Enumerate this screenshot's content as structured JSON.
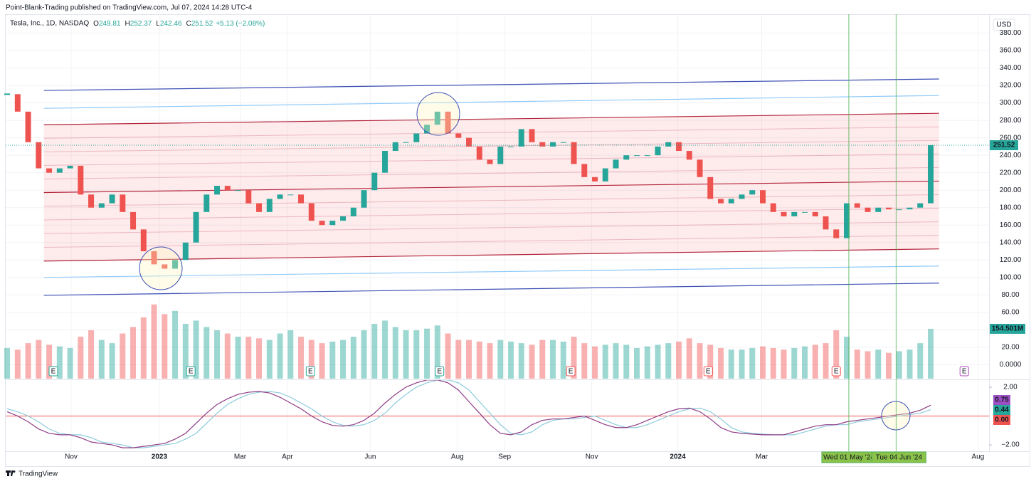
{
  "header": {
    "publisher": "Point-Blank-Trading published on TradingView.com, Jul 07, 2024 14:28 UTC-4",
    "symbol": "Tesla, Inc., 1D, NASDAQ",
    "ohlc": [
      {
        "label": "O",
        "value": 249.81
      },
      {
        "label": "H",
        "value": 252.37
      },
      {
        "label": "L",
        "value": 242.46
      },
      {
        "label": "C",
        "value": 251.52
      }
    ],
    "change": "+5.13 (+2.08%)",
    "currency": "USD",
    "footer": "TradingView"
  },
  "chart_data": {
    "type": "candlestick",
    "up_color": "#26a69a",
    "down_color": "#ef5350",
    "grid": true,
    "values": [
      310,
      290,
      255,
      225,
      220,
      225,
      228,
      195,
      180,
      185,
      195,
      175,
      155,
      130,
      115,
      110,
      120,
      140,
      175,
      195,
      205,
      200,
      200,
      185,
      175,
      190,
      195,
      195,
      185,
      165,
      160,
      165,
      170,
      180,
      200,
      220,
      245,
      255,
      255,
      265,
      275,
      290,
      265,
      260,
      250,
      235,
      230,
      250,
      250,
      270,
      255,
      250,
      255,
      255,
      230,
      215,
      210,
      225,
      235,
      240,
      240,
      240,
      250,
      255,
      245,
      235,
      215,
      190,
      185,
      190,
      195,
      200,
      185,
      175,
      170,
      175,
      175,
      170,
      155,
      145,
      185,
      180,
      175,
      180,
      178,
      178,
      180,
      185,
      251.52
    ],
    "xlim": [
      -0.14,
      93.56
    ],
    "xticks": [
      {
        "value": 6.1,
        "label": "Nov"
      },
      {
        "value": 14.5,
        "label": "2023"
      },
      {
        "value": 22.2,
        "label": "Mar"
      },
      {
        "value": 26.7,
        "label": "Apr"
      },
      {
        "value": 34.6,
        "label": "Jun"
      },
      {
        "value": 42.9,
        "label": "Aug"
      },
      {
        "value": 47.4,
        "label": "Sep"
      },
      {
        "value": 55.7,
        "label": "Nov"
      },
      {
        "value": 63.9,
        "label": "2024"
      },
      {
        "value": 71.9,
        "label": "Mar"
      },
      {
        "value": 92.5,
        "label": "Aug"
      }
    ],
    "ylim": [
      -16,
      400
    ],
    "yticks": [
      {
        "value": 0,
        "label": "0.0000"
      },
      {
        "value": 20,
        "label": "20.00"
      },
      {
        "value": 40,
        "label": "40.00"
      },
      {
        "value": 60,
        "label": "60.00"
      },
      {
        "value": 80,
        "label": "80.00"
      },
      {
        "value": 100,
        "label": "100.00"
      },
      {
        "value": 120,
        "label": "120.00"
      },
      {
        "value": 140,
        "label": "140.00"
      },
      {
        "value": 160,
        "label": "160.00"
      },
      {
        "value": 180,
        "label": "180.00"
      },
      {
        "value": 200,
        "label": "200.00"
      },
      {
        "value": 220,
        "label": "220.00"
      },
      {
        "value": 240,
        "label": "240.00"
      },
      {
        "value": 260,
        "label": "260.00"
      },
      {
        "value": 280,
        "label": "280.00"
      },
      {
        "value": 300,
        "label": "300.00"
      },
      {
        "value": 320,
        "label": "320.00"
      },
      {
        "value": 340,
        "label": "340.00"
      },
      {
        "value": 360,
        "label": "360.00"
      },
      {
        "value": 380,
        "label": "380.00"
      }
    ],
    "volume": {
      "values": [
        95,
        90,
        110,
        120,
        105,
        100,
        95,
        130,
        150,
        120,
        110,
        140,
        160,
        190,
        230,
        200,
        210,
        170,
        180,
        160,
        150,
        140,
        130,
        130,
        125,
        120,
        140,
        150,
        130,
        120,
        110,
        115,
        120,
        130,
        150,
        170,
        180,
        160,
        150,
        150,
        155,
        165,
        140,
        120,
        120,
        115,
        110,
        120,
        115,
        110,
        105,
        120,
        120,
        115,
        130,
        110,
        100,
        105,
        110,
        105,
        95,
        100,
        105,
        110,
        115,
        125,
        110,
        105,
        95,
        90,
        90,
        95,
        100,
        95,
        90,
        95,
        100,
        105,
        110,
        150,
        130,
        90,
        85,
        90,
        80,
        85,
        90,
        110,
        154.501
      ],
      "ylim": [
        0,
        1125
      ],
      "last_label": "154.501M"
    },
    "channel": {
      "x": [
        3.5,
        88.8
      ],
      "fill": "rgba(242,54,69,0.1)",
      "lines": [
        {
          "from": 314.3,
          "to": 327.4,
          "color": "#3f51b5"
        },
        {
          "from": 293.8,
          "to": 308.5,
          "color": "#90caf9"
        },
        {
          "from": 275.0,
          "to": 288.1,
          "color": "#b2243a"
        },
        {
          "from": 197.3,
          "to": 210.4,
          "color": "#b2243a"
        },
        {
          "from": 118.8,
          "to": 132.7,
          "color": "#b2243a"
        },
        {
          "from": 100.0,
          "to": 113.1,
          "color": "#90caf9"
        },
        {
          "from": 79.5,
          "to": 93.5,
          "color": "#3f51b5"
        }
      ]
    },
    "earnings": {
      "label": "E",
      "markers": [
        {
          "x": 4.4,
          "color": "#26a69a"
        },
        {
          "x": 17.5,
          "color": "#26a69a"
        },
        {
          "x": 28.9,
          "color": "#26a69a"
        },
        {
          "x": 41.2,
          "color": "#26a69a"
        },
        {
          "x": 53.7,
          "color": "#ef5350"
        },
        {
          "x": 66.8,
          "color": "#ef5350"
        },
        {
          "x": 79.0,
          "color": "#ef5350"
        },
        {
          "x": 91.2,
          "color": "#ab47bc"
        }
      ]
    },
    "crosshairs": [
      {
        "x": 80.2,
        "label": "Wed 01 May '24"
      },
      {
        "x": 84.7,
        "label": "Tue 04 Jun '24"
      }
    ],
    "oscillator": {
      "ylim": [
        -2.44,
        2.49
      ],
      "yticks": [
        {
          "value": 2,
          "label": "2.00"
        },
        {
          "value": -2,
          "label": "−2.00"
        }
      ],
      "zero_line": {
        "value": 0,
        "label": "0.00",
        "color": "#ef5350"
      },
      "series": [
        {
          "color": "#8e3b86",
          "values": [
            0.3,
            0.0,
            -0.4,
            -0.9,
            -1.2,
            -1.3,
            -1.3,
            -1.5,
            -1.8,
            -1.9,
            -2.0,
            -2.2,
            -2.2,
            -2.1,
            -2.0,
            -1.9,
            -1.6,
            -1.2,
            -0.5,
            0.2,
            0.8,
            1.2,
            1.5,
            1.65,
            1.7,
            1.6,
            1.3,
            0.9,
            0.5,
            0.0,
            -0.4,
            -0.65,
            -0.7,
            -0.6,
            -0.3,
            0.2,
            0.9,
            1.5,
            2.0,
            2.3,
            2.5,
            2.5,
            2.3,
            1.8,
            1.0,
            0.2,
            -0.6,
            -1.2,
            -1.3,
            -1.1,
            -0.6,
            -0.3,
            -0.2,
            -0.2,
            -0.1,
            0.0,
            -0.3,
            -0.6,
            -0.8,
            -0.8,
            -0.6,
            -0.3,
            0.0,
            0.3,
            0.5,
            0.55,
            0.3,
            -0.2,
            -0.8,
            -1.1,
            -1.2,
            -1.25,
            -1.3,
            -1.3,
            -1.3,
            -1.1,
            -0.9,
            -0.7,
            -0.6,
            -0.6,
            -0.4,
            -0.3,
            -0.2,
            -0.1,
            0.0,
            0.1,
            0.2,
            0.4,
            0.75
          ],
          "label_color": "#9c4fc3"
        },
        {
          "color": "#8ccbdb",
          "values": [
            0.5,
            0.3,
            0.0,
            -0.4,
            -0.9,
            -1.2,
            -1.3,
            -1.3,
            -1.5,
            -1.8,
            -1.9,
            -2.0,
            -2.2,
            -2.2,
            -2.1,
            -2.0,
            -1.9,
            -1.6,
            -1.2,
            -0.5,
            0.2,
            0.8,
            1.2,
            1.5,
            1.65,
            1.7,
            1.6,
            1.3,
            0.9,
            0.5,
            0.0,
            -0.4,
            -0.65,
            -0.7,
            -0.6,
            -0.3,
            0.2,
            0.9,
            1.5,
            2.0,
            2.3,
            2.5,
            2.5,
            2.3,
            1.8,
            1.0,
            0.2,
            -0.6,
            -1.2,
            -1.3,
            -1.1,
            -0.6,
            -0.3,
            -0.2,
            -0.2,
            -0.1,
            0.0,
            -0.3,
            -0.6,
            -0.8,
            -0.8,
            -0.6,
            -0.3,
            0.0,
            0.3,
            0.5,
            0.55,
            0.3,
            -0.2,
            -0.8,
            -1.1,
            -1.2,
            -1.25,
            -1.3,
            -1.3,
            -1.3,
            -1.1,
            -0.9,
            -0.7,
            -0.6,
            -0.6,
            -0.4,
            -0.3,
            -0.2,
            -0.1,
            0.0,
            0.1,
            0.2,
            0.44
          ],
          "label_color": "#26a69a"
        }
      ]
    }
  }
}
